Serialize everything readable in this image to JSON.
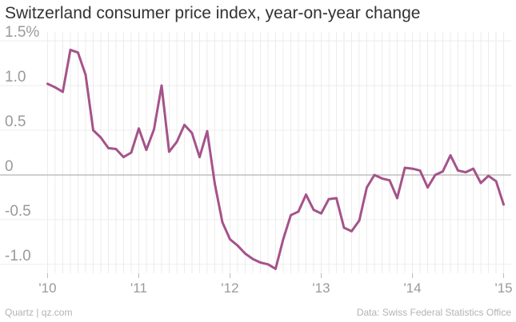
{
  "title": "Switzerland consumer price index, year-on-year change",
  "footer": {
    "source_left": "Quartz | qz.com",
    "source_right": "Data: Swiss Federal Statistics Office"
  },
  "colors": {
    "line": "#a5538a",
    "zero_line": "#b5b5b5",
    "grid": "#ececec",
    "tick_text": "#9a9a9a"
  },
  "chart_data": {
    "type": "line",
    "title": "Switzerland consumer price index, year-on-year change",
    "xlabel": "",
    "ylabel": "",
    "xlim": [
      2009.917,
      2015.083
    ],
    "ylim": [
      -1.1,
      1.6
    ],
    "grid": true,
    "y_ticks": [
      1.5,
      1.0,
      0.5,
      0,
      -0.5,
      -1.0
    ],
    "y_tick_labels": [
      "1.5%",
      "1.0",
      "0.5",
      "0",
      "-0.5",
      "-1.0"
    ],
    "x_ticks": [
      2010,
      2011,
      2012,
      2013,
      2014,
      2015
    ],
    "x_tick_labels": [
      "'10",
      "'11",
      "'12",
      "'13",
      "'14",
      "'15"
    ],
    "series": [
      {
        "x": [
          2010.0,
          2010.083,
          2010.167,
          2010.25,
          2010.333,
          2010.417,
          2010.5,
          2010.583,
          2010.667,
          2010.75,
          2010.833,
          2010.917,
          2011.0,
          2011.083,
          2011.167,
          2011.25,
          2011.333,
          2011.417,
          2011.5,
          2011.583,
          2011.667,
          2011.75,
          2011.833,
          2011.917,
          2012.0,
          2012.083,
          2012.167,
          2012.25,
          2012.333,
          2012.417,
          2012.5,
          2012.583,
          2012.667,
          2012.75,
          2012.833,
          2012.917,
          2013.0,
          2013.083,
          2013.167,
          2013.25,
          2013.333,
          2013.417,
          2013.5,
          2013.583,
          2013.667,
          2013.75,
          2013.833,
          2013.917,
          2014.0,
          2014.083,
          2014.167,
          2014.25,
          2014.333,
          2014.417,
          2014.5,
          2014.583,
          2014.667,
          2014.75,
          2014.833,
          2014.917,
          2015.0
        ],
        "values": [
          1.02,
          0.98,
          0.93,
          1.4,
          1.37,
          1.12,
          0.5,
          0.42,
          0.3,
          0.29,
          0.2,
          0.25,
          0.52,
          0.28,
          0.51,
          1.0,
          0.26,
          0.37,
          0.56,
          0.47,
          0.2,
          0.49,
          -0.1,
          -0.53,
          -0.72,
          -0.79,
          -0.88,
          -0.94,
          -0.98,
          -1.0,
          -1.05,
          -0.72,
          -0.45,
          -0.41,
          -0.22,
          -0.39,
          -0.43,
          -0.27,
          -0.26,
          -0.59,
          -0.63,
          -0.51,
          -0.14,
          0.0,
          -0.04,
          -0.06,
          -0.26,
          0.08,
          0.07,
          0.05,
          -0.14,
          0.0,
          0.04,
          0.22,
          0.05,
          0.03,
          0.07,
          -0.09,
          -0.01,
          -0.07,
          -0.33
        ]
      }
    ]
  }
}
